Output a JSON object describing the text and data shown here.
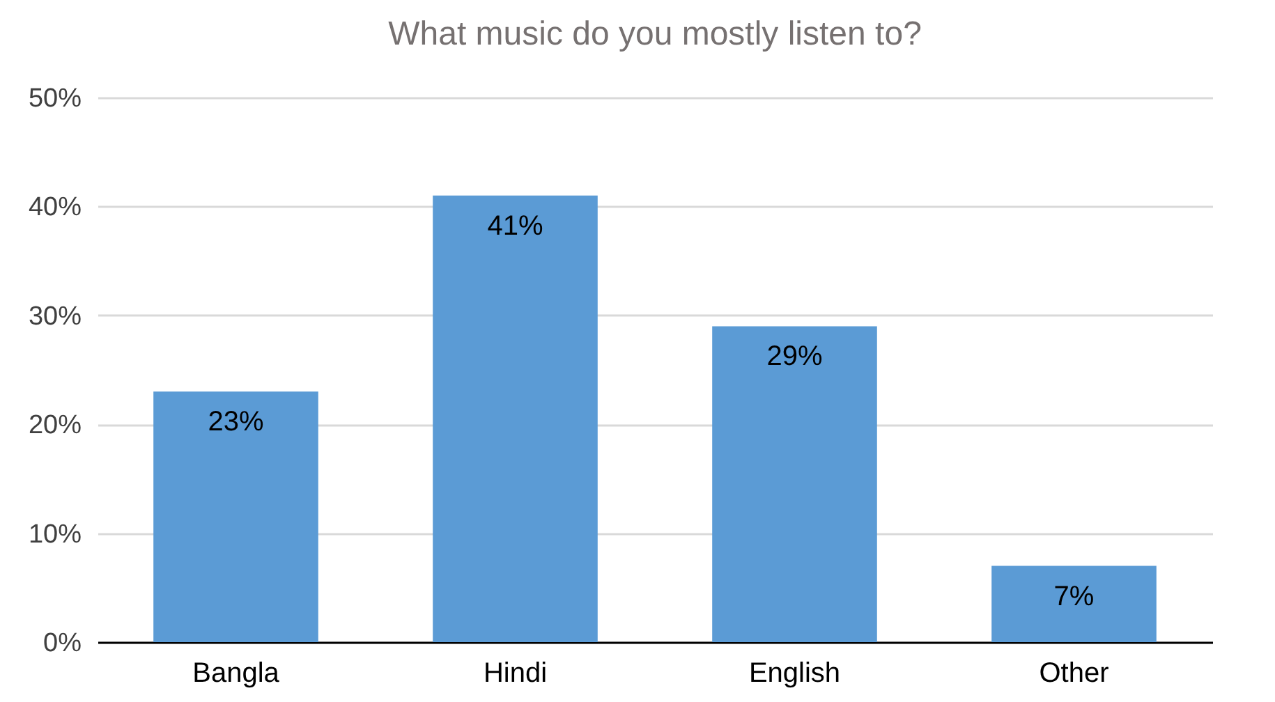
{
  "chart_data": {
    "type": "bar",
    "title": "What music do you mostly listen to?",
    "categories": [
      "Bangla",
      "Hindi",
      "English",
      "Other"
    ],
    "values": [
      23,
      41,
      29,
      7
    ],
    "value_labels": [
      "23%",
      "41%",
      "29%",
      "7%"
    ],
    "color": "#5b9bd5",
    "ylim": [
      0,
      50
    ],
    "yticks": [
      {
        "value": 0,
        "label": "0%"
      },
      {
        "value": 10,
        "label": "10%"
      },
      {
        "value": 20,
        "label": "20%"
      },
      {
        "value": 30,
        "label": "30%"
      },
      {
        "value": 40,
        "label": "40%"
      },
      {
        "value": 50,
        "label": "50%"
      }
    ],
    "grid": "y"
  }
}
